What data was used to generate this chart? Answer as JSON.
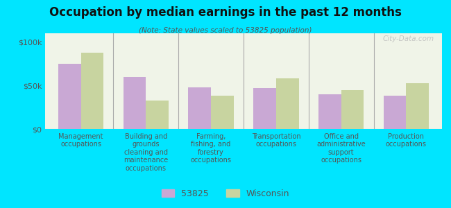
{
  "title": "Occupation by median earnings in the past 12 months",
  "subtitle": "(Note: State values scaled to 53825 population)",
  "categories": [
    "Management\noccupations",
    "Building and\ngrounds\ncleaning and\nmaintenance\noccupations",
    "Farming,\nfishing, and\nforestry\noccupations",
    "Transportation\noccupations",
    "Office and\nadministrative\nsupport\noccupations",
    "Production\noccupations"
  ],
  "values_53825": [
    75000,
    60000,
    48000,
    47000,
    40000,
    38000
  ],
  "values_wisconsin": [
    88000,
    33000,
    38000,
    58000,
    45000,
    53000
  ],
  "color_53825": "#c9a8d4",
  "color_wisconsin": "#c8d4a0",
  "background_outer": "#00e5ff",
  "background_plot": "#f0f4e8",
  "ylim": [
    0,
    110000
  ],
  "ytick_labels": [
    "$0",
    "$50k",
    "$100k"
  ],
  "legend_label_53825": "53825",
  "legend_label_wisconsin": "Wisconsin",
  "watermark": "City-Data.com"
}
